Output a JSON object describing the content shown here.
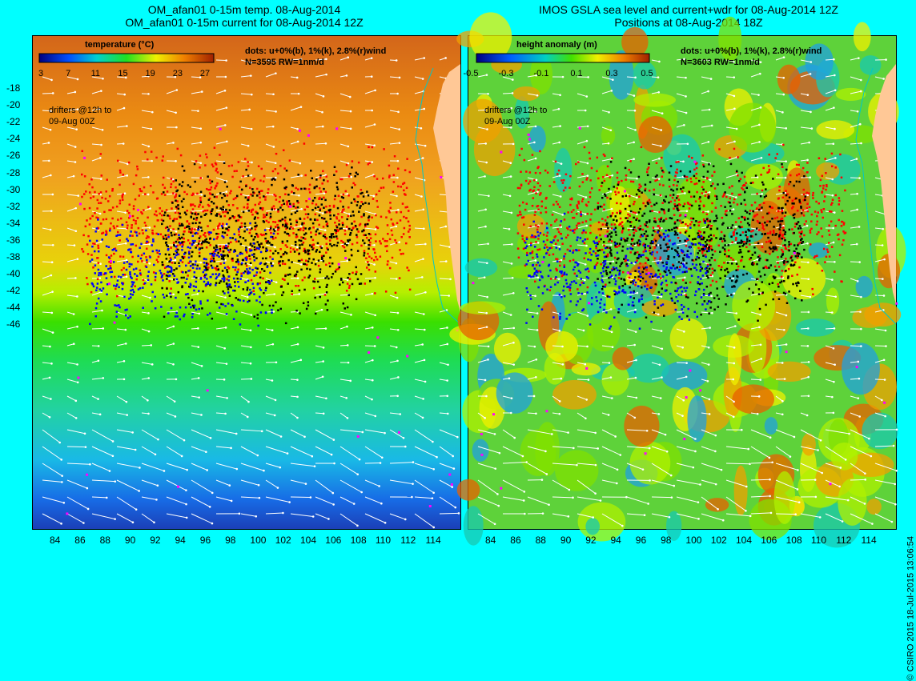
{
  "left": {
    "title_line1": "OM_afan01 0-15m temp. 08-Aug-2014",
    "title_line2": "OM_afan01 0-15m current for 08-Aug-2014 12Z",
    "colorbar_title": "temperature (°C)",
    "colorbar_ticks": [
      "3",
      "7",
      "11",
      "15",
      "19",
      "23",
      "27"
    ],
    "info_line1": "dots: u+0%(b), 1%(k), 2.8%(r)wind",
    "info_line2": "N=3595 RW=1nm/d",
    "note_line1": "drifters @12h to",
    "note_line2": "09-Aug 00Z",
    "lat_labels": [
      "-18",
      "-20",
      "-22",
      "-24",
      "-26",
      "-28",
      "-30",
      "-32",
      "-34",
      "-36",
      "-38",
      "-40",
      "-42",
      "-44",
      "-46"
    ]
  },
  "right": {
    "title_line1": "IMOS GSLA sea level and current+wdr for 08-Aug-2014 12Z",
    "title_line2": "Positions at 08-Aug-2014 18Z",
    "colorbar_title": "height anomaly (m)",
    "colorbar_ticks": [
      "-0.5",
      "-0.3",
      "-0.1",
      "0.1",
      "0.3",
      "0.5"
    ],
    "info_line1": "dots: u+0%(b), 1%(k), 2.8%(r)wind",
    "info_line2": "N=3603 RW=1nm/d",
    "note_line1": "drifters @12h to",
    "note_line2": "09-Aug 00Z"
  },
  "lon_labels": [
    "84",
    "86",
    "88",
    "90",
    "92",
    "94",
    "96",
    "98",
    "100",
    "102",
    "104",
    "106",
    "108",
    "110",
    "112",
    "114"
  ],
  "copyright": "© CSIRO 2015   18-Jul-2015 13:06:54",
  "colors": {
    "background": "#00ffff",
    "land": "#ffc896",
    "coast": "#00c8c8",
    "dot_blue": "#0000ff",
    "dot_black": "#000000",
    "dot_red": "#ff0000",
    "dot_magenta": "#ff00ff",
    "arrow": "#ffffff"
  }
}
